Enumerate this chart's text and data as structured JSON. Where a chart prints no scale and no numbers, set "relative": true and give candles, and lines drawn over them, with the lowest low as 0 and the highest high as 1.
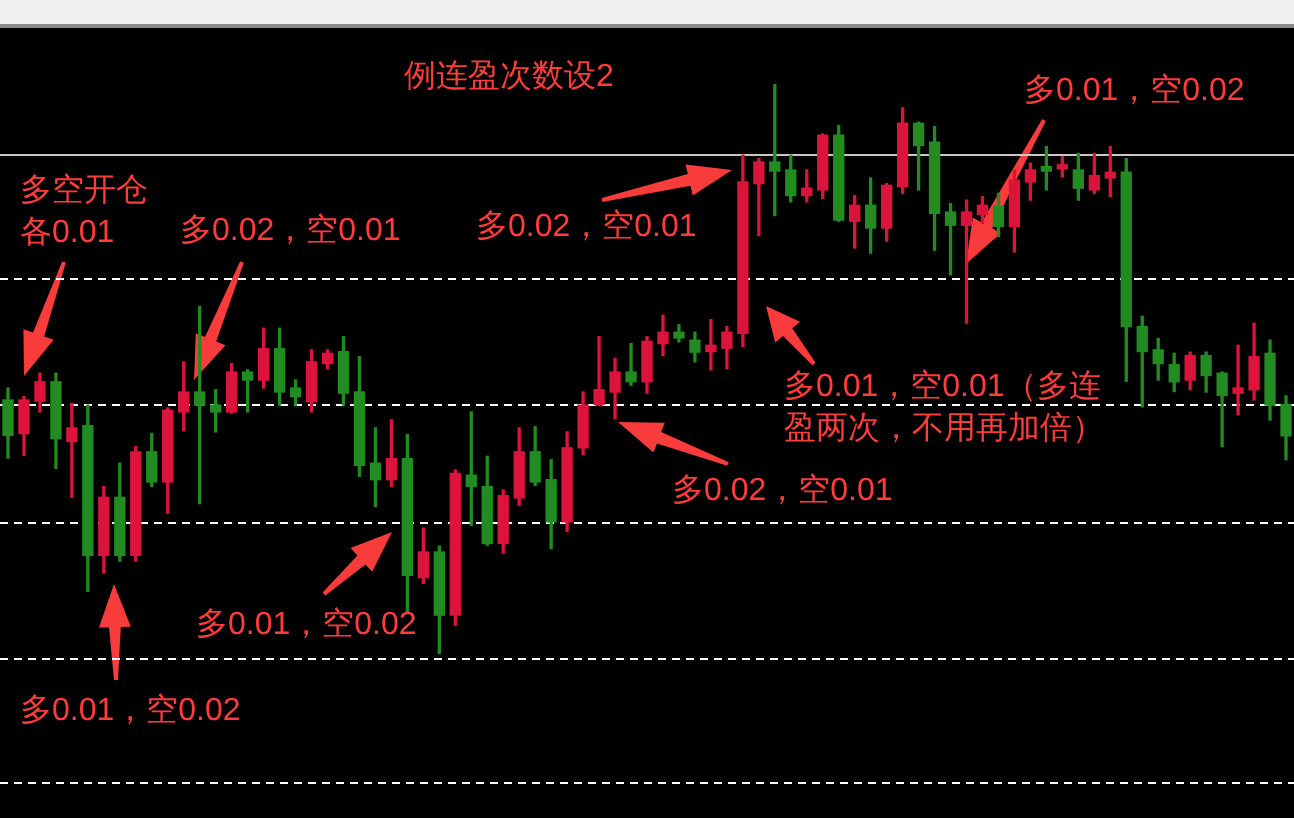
{
  "chart_data": {
    "type": "candlestick",
    "title": "例连盈次数设2",
    "relative": true,
    "tick_labels": false,
    "categories": [
      null,
      null,
      null,
      null,
      null,
      null,
      null,
      null,
      null,
      null,
      null,
      null,
      null,
      null,
      null,
      null,
      null,
      null,
      null,
      null,
      null,
      null,
      null,
      null,
      null,
      null,
      null,
      null,
      null,
      null,
      null,
      null,
      null,
      null,
      null,
      null,
      null,
      null,
      null,
      null,
      null,
      null,
      null,
      null,
      null,
      null,
      null,
      null,
      null,
      null,
      null,
      null,
      null,
      null,
      null,
      null,
      null,
      null,
      null,
      null,
      null,
      null,
      null,
      null,
      null,
      null,
      null,
      null,
      null,
      null,
      null,
      null,
      null,
      null,
      null,
      null,
      null,
      null,
      null,
      null,
      null
    ],
    "ohlc": [
      [
        0.445,
        0.466,
        0.343,
        0.383
      ],
      [
        0.386,
        0.451,
        0.348,
        0.445
      ],
      [
        0.443,
        0.492,
        0.424,
        0.477
      ],
      [
        0.477,
        0.492,
        0.325,
        0.377
      ],
      [
        0.372,
        0.439,
        0.274,
        0.396
      ],
      [
        0.4,
        0.436,
        0.109,
        0.172
      ],
      [
        0.172,
        0.293,
        0.141,
        0.274
      ],
      [
        0.274,
        0.334,
        0.162,
        0.172
      ],
      [
        0.172,
        0.363,
        0.162,
        0.354
      ],
      [
        0.354,
        0.386,
        0.293,
        0.301
      ],
      [
        0.301,
        0.431,
        0.246,
        0.427
      ],
      [
        0.424,
        0.512,
        0.391,
        0.459
      ],
      [
        0.459,
        0.609,
        0.263,
        0.436
      ],
      [
        0.436,
        0.463,
        0.389,
        0.424
      ],
      [
        0.424,
        0.509,
        0.422,
        0.494
      ],
      [
        0.494,
        0.498,
        0.424,
        0.48
      ],
      [
        0.48,
        0.571,
        0.466,
        0.535
      ],
      [
        0.535,
        0.571,
        0.436,
        0.459
      ],
      [
        0.466,
        0.48,
        0.436,
        0.451
      ],
      [
        0.442,
        0.533,
        0.424,
        0.512
      ],
      [
        0.509,
        0.533,
        0.5,
        0.527
      ],
      [
        0.53,
        0.556,
        0.436,
        0.457
      ],
      [
        0.459,
        0.521,
        0.311,
        0.33
      ],
      [
        0.334,
        0.396,
        0.258,
        0.305
      ],
      [
        0.305,
        0.41,
        0.293,
        0.342
      ],
      [
        0.342,
        0.384,
        0.07,
        0.137
      ],
      [
        0.133,
        0.22,
        0.123,
        0.178
      ],
      [
        0.178,
        0.188,
        0,
        0.067
      ],
      [
        0.067,
        0.322,
        0.049,
        0.316
      ],
      [
        0.313,
        0.424,
        0.225,
        0.293
      ],
      [
        0.293,
        0.346,
        0.19,
        0.193
      ],
      [
        0.193,
        0.287,
        0.176,
        0.277
      ],
      [
        0.273,
        0.396,
        0.26,
        0.354
      ],
      [
        0.354,
        0.398,
        0.295,
        0.301
      ],
      [
        0.305,
        0.34,
        0.184,
        0.231
      ],
      [
        0.231,
        0.389,
        0.214,
        0.361
      ],
      [
        0.361,
        0.459,
        0.349,
        0.436
      ],
      [
        0.437,
        0.556,
        0.435,
        0.463
      ],
      [
        0.459,
        0.518,
        0.412,
        0.494
      ],
      [
        0.494,
        0.544,
        0.471,
        0.477
      ],
      [
        0.477,
        0.556,
        0.457,
        0.548
      ],
      [
        0.544,
        0.594,
        0.523,
        0.564
      ],
      [
        0.564,
        0.577,
        0.547,
        0.554
      ],
      [
        0.55,
        0.564,
        0.512,
        0.529
      ],
      [
        0.53,
        0.586,
        0.498,
        0.541
      ],
      [
        0.536,
        0.574,
        0.5,
        0.564
      ],
      [
        0.562,
        0.875,
        0.539,
        0.828
      ],
      [
        0.825,
        0.869,
        0.734,
        0.863
      ],
      [
        0.863,
        1,
        0.769,
        0.847
      ],
      [
        0.849,
        0.875,
        0.793,
        0.804
      ],
      [
        0.804,
        0.849,
        0.793,
        0.817
      ],
      [
        0.814,
        0.912,
        0.799,
        0.91
      ],
      [
        0.91,
        0.927,
        0.759,
        0.761
      ],
      [
        0.759,
        0.804,
        0.712,
        0.787
      ],
      [
        0.787,
        0.835,
        0.703,
        0.747
      ],
      [
        0.747,
        0.825,
        0.724,
        0.822
      ],
      [
        0.82,
        0.958,
        0.808,
        0.931
      ],
      [
        0.931,
        0.933,
        0.814,
        0.892
      ],
      [
        0.898,
        0.925,
        0.708,
        0.773
      ],
      [
        0.775,
        0.79,
        0.665,
        0.752
      ],
      [
        0.752,
        0.796,
        0.58,
        0.775
      ],
      [
        0.771,
        0.802,
        0.755,
        0.787
      ],
      [
        0.785,
        0.808,
        0.732,
        0.75
      ],
      [
        0.75,
        0.849,
        0.705,
        0.831
      ],
      [
        0.828,
        0.861,
        0.796,
        0.849
      ],
      [
        0.855,
        0.89,
        0.814,
        0.847
      ],
      [
        0.851,
        0.872,
        0.837,
        0.858
      ],
      [
        0.849,
        0.878,
        0.796,
        0.817
      ],
      [
        0.814,
        0.878,
        0.808,
        0.839
      ],
      [
        0.835,
        0.89,
        0.802,
        0.845
      ],
      [
        0.845,
        0.869,
        0.478,
        0.574
      ],
      [
        0.574,
        0.592,
        0.433,
        0.53
      ],
      [
        0.533,
        0.553,
        0.48,
        0.509
      ],
      [
        0.507,
        0.527,
        0.46,
        0.477
      ],
      [
        0.48,
        0.529,
        0.463,
        0.523
      ],
      [
        0.523,
        0.529,
        0.459,
        0.488
      ],
      [
        0.492,
        0.494,
        0.363,
        0.453
      ],
      [
        0.457,
        0.541,
        0.419,
        0.466
      ],
      [
        0.463,
        0.58,
        0.445,
        0.521
      ],
      [
        0.527,
        0.55,
        0.41,
        0.436
      ],
      [
        0.437,
        0.452,
        0.34,
        0.382
      ]
    ],
    "colors": [
      "#228b22",
      "#dc143c",
      "#dc143c",
      "#228b22",
      "#dc143c",
      "#228b22",
      "#dc143c",
      "#228b22",
      "#dc143c",
      "#228b22",
      "#dc143c",
      "#dc143c",
      "#228b22",
      "#228b22",
      "#dc143c",
      "#228b22",
      "#dc143c",
      "#228b22",
      "#228b22",
      "#dc143c",
      "#dc143c",
      "#228b22",
      "#228b22",
      "#228b22",
      "#dc143c",
      "#228b22",
      "#dc143c",
      "#228b22",
      "#dc143c",
      "#228b22",
      "#228b22",
      "#dc143c",
      "#dc143c",
      "#228b22",
      "#228b22",
      "#dc143c",
      "#dc143c",
      "#dc143c",
      "#dc143c",
      "#228b22",
      "#dc143c",
      "#dc143c",
      "#228b22",
      "#228b22",
      "#dc143c",
      "#dc143c",
      "#dc143c",
      "#dc143c",
      "#228b22",
      "#228b22",
      "#dc143c",
      "#dc143c",
      "#228b22",
      "#dc143c",
      "#228b22",
      "#dc143c",
      "#dc143c",
      "#228b22",
      "#228b22",
      "#228b22",
      "#dc143c",
      "#dc143c",
      "#228b22",
      "#dc143c",
      "#dc143c",
      "#228b22",
      "#dc143c",
      "#228b22",
      "#dc143c",
      "#dc143c",
      "#228b22",
      "#228b22",
      "#228b22",
      "#228b22",
      "#dc143c",
      "#228b22",
      "#228b22",
      "#dc143c",
      "#dc143c",
      "#228b22",
      "#228b22"
    ],
    "ref_lines": [
      {
        "axis": "y",
        "value": 0.876,
        "color": "#c8c8c8",
        "line_style": "solid"
      },
      {
        "axis": "y",
        "value": 0.658,
        "color": "#ffffff",
        "line_style": "dashed"
      },
      {
        "axis": "y",
        "value": 0.439,
        "color": "#ffffff",
        "line_style": "dashed"
      },
      {
        "axis": "y",
        "value": 0.231,
        "color": "#ffffff",
        "line_style": "dashed"
      },
      {
        "axis": "y",
        "value": -0.009,
        "color": "#ffffff",
        "line_style": "dashed"
      },
      {
        "axis": "y",
        "value": -0.226,
        "color": "#ffffff",
        "line_style": "dashed"
      }
    ],
    "annotations": [
      "多空开仓各0.01",
      "多0.02，空0.01",
      "多0.01，空0.02",
      "多0.01，空0.02",
      "多0.02，空0.01",
      "多0.01，空0.01（多连盈两次，不用再加倍）",
      "多0.02，空0.01",
      "多0.01，空0.02"
    ]
  }
}
